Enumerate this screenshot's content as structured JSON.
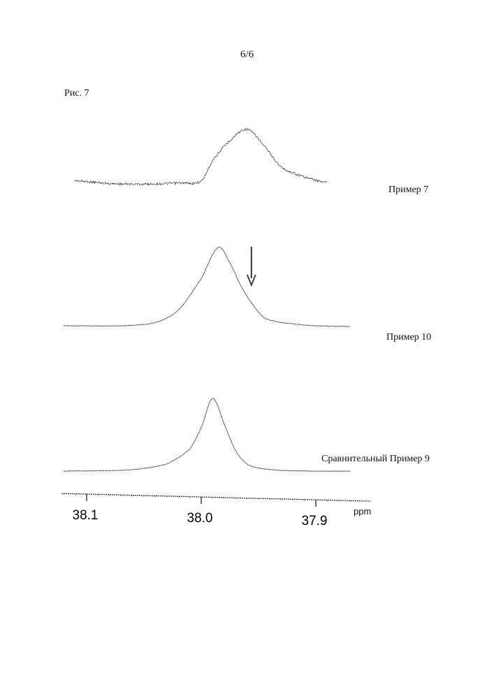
{
  "page_number": "6/6",
  "figure_label": "Рис. 7",
  "chart_data": {
    "type": "line",
    "xlabel": "ppm",
    "xlim": [
      38.12,
      37.87
    ],
    "x_reversed": true,
    "x_ticks": [
      38.1,
      38.0,
      37.9
    ],
    "x_tick_labels": [
      "38.1",
      "38.0",
      "37.9"
    ],
    "grid": false,
    "legend": "labels to the right of each trace",
    "series": [
      {
        "name": "Пример 7",
        "x": [
          38.11,
          38.08,
          38.05,
          38.02,
          38.0,
          37.99,
          37.975,
          37.96,
          37.945,
          37.93,
          37.91,
          37.89
        ],
        "values": [
          0.08,
          0.03,
          0.02,
          0.04,
          0.07,
          0.45,
          0.8,
          1.0,
          0.7,
          0.32,
          0.15,
          0.05
        ]
      },
      {
        "name": "Пример 10",
        "x": [
          38.12,
          38.07,
          38.04,
          38.02,
          38.0,
          37.985,
          37.975,
          37.965,
          37.955,
          37.945,
          37.93,
          37.9,
          37.87
        ],
        "values": [
          0.0,
          0.0,
          0.04,
          0.2,
          0.6,
          1.0,
          0.8,
          0.5,
          0.27,
          0.1,
          0.04,
          0.0,
          -0.01
        ]
      },
      {
        "name": "Сравнительный Пример 9",
        "x": [
          38.12,
          38.06,
          38.03,
          38.01,
          38.0,
          37.99,
          37.98,
          37.97,
          37.96,
          37.95,
          37.93,
          37.9,
          37.87
        ],
        "values": [
          0.0,
          0.02,
          0.1,
          0.3,
          0.6,
          1.0,
          0.65,
          0.28,
          0.1,
          0.04,
          0.01,
          0.0,
          0.0
        ]
      }
    ],
    "annotations": [
      {
        "type": "arrow",
        "series": "Пример 10",
        "x": 37.955,
        "direction": "down"
      }
    ],
    "color": "#222222"
  }
}
